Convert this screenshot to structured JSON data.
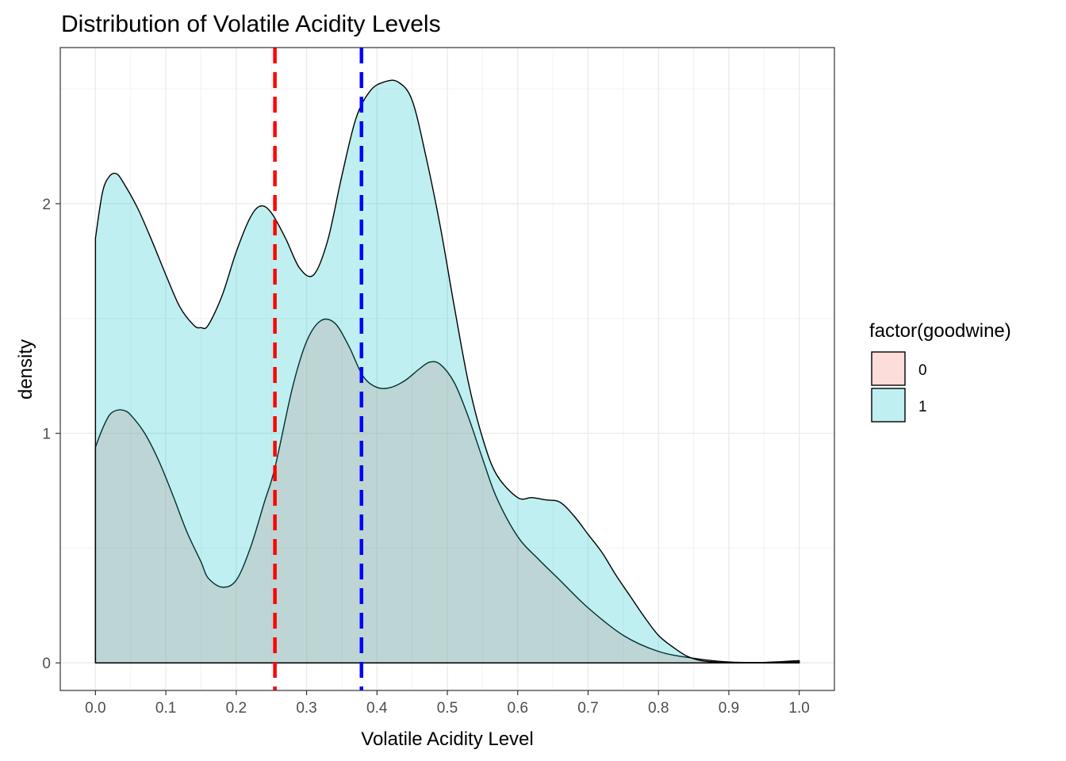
{
  "chart_data": {
    "type": "area",
    "title": "Distribution of Volatile Acidity Levels",
    "xlabel": "Volatile Acidity Level",
    "ylabel": "density",
    "xlim": [
      -0.05,
      1.05
    ],
    "ylim": [
      -0.12,
      2.68
    ],
    "x_ticks": [
      "0.0",
      "0.1",
      "0.2",
      "0.3",
      "0.4",
      "0.5",
      "0.6",
      "0.7",
      "0.8",
      "0.9",
      "1.0"
    ],
    "y_ticks": [
      "0",
      "1",
      "2"
    ],
    "grid": true,
    "legend": {
      "title": "factor(goodwine)",
      "placement": "right",
      "entries": [
        "0",
        "1"
      ]
    },
    "series": [
      {
        "name": "0",
        "fill": "#F8766D",
        "x": [
          0.0,
          0.01,
          0.02,
          0.03,
          0.04,
          0.05,
          0.07,
          0.09,
          0.11,
          0.13,
          0.15,
          0.16,
          0.18,
          0.2,
          0.22,
          0.24,
          0.255,
          0.28,
          0.3,
          0.32,
          0.34,
          0.36,
          0.38,
          0.4,
          0.42,
          0.44,
          0.46,
          0.475,
          0.49,
          0.51,
          0.53,
          0.55,
          0.57,
          0.6,
          0.63,
          0.66,
          0.7,
          0.75,
          0.8,
          0.85,
          0.9,
          0.95,
          1.0
        ],
        "y": [
          0.94,
          1.02,
          1.08,
          1.1,
          1.1,
          1.08,
          1.0,
          0.88,
          0.73,
          0.57,
          0.44,
          0.37,
          0.33,
          0.36,
          0.5,
          0.7,
          0.85,
          1.2,
          1.4,
          1.49,
          1.48,
          1.38,
          1.25,
          1.2,
          1.2,
          1.23,
          1.28,
          1.31,
          1.3,
          1.22,
          1.07,
          0.89,
          0.72,
          0.55,
          0.45,
          0.36,
          0.24,
          0.12,
          0.05,
          0.02,
          0.004,
          0.002,
          0.01
        ]
      },
      {
        "name": "1",
        "fill": "#00BFC4",
        "x": [
          0.0,
          0.01,
          0.02,
          0.03,
          0.04,
          0.06,
          0.08,
          0.1,
          0.12,
          0.14,
          0.15,
          0.16,
          0.18,
          0.2,
          0.22,
          0.235,
          0.25,
          0.27,
          0.29,
          0.31,
          0.33,
          0.35,
          0.37,
          0.39,
          0.41,
          0.43,
          0.45,
          0.47,
          0.49,
          0.51,
          0.53,
          0.55,
          0.57,
          0.6,
          0.62,
          0.64,
          0.66,
          0.68,
          0.7,
          0.72,
          0.74,
          0.76,
          0.78,
          0.8,
          0.82,
          0.84,
          0.86,
          0.88,
          0.9,
          0.95,
          1.0
        ],
        "y": [
          1.85,
          2.05,
          2.12,
          2.13,
          2.09,
          1.98,
          1.84,
          1.69,
          1.55,
          1.47,
          1.46,
          1.47,
          1.6,
          1.79,
          1.94,
          1.99,
          1.96,
          1.85,
          1.72,
          1.69,
          1.84,
          2.12,
          2.37,
          2.49,
          2.53,
          2.53,
          2.45,
          2.2,
          1.9,
          1.55,
          1.22,
          0.98,
          0.82,
          0.72,
          0.72,
          0.71,
          0.7,
          0.64,
          0.56,
          0.48,
          0.38,
          0.29,
          0.2,
          0.12,
          0.07,
          0.03,
          0.01,
          0.004,
          0.002,
          0.002,
          0.005
        ]
      }
    ],
    "reference_lines": [
      {
        "x": 0.255,
        "color": "#FF0000"
      },
      {
        "x": 0.378,
        "color": "#0000FF"
      }
    ]
  }
}
